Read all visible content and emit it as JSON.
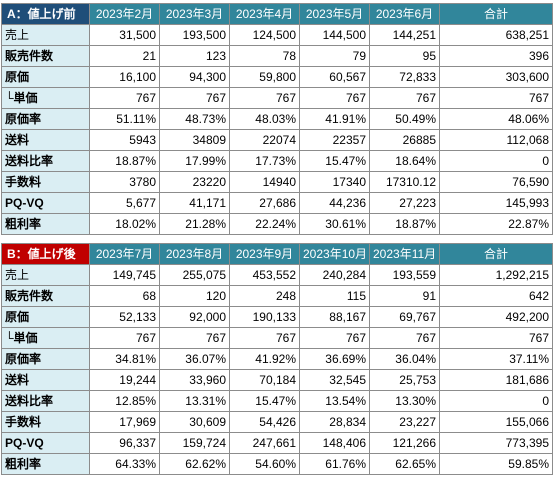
{
  "table_a": {
    "corner": "A：値上げ前",
    "headers": [
      "2023年2月",
      "2023年3月",
      "2023年4月",
      "2023年5月",
      "2023年6月",
      "合計"
    ],
    "rows": [
      {
        "label": "売上",
        "cells": [
          "31,500",
          "193,500",
          "124,500",
          "144,500",
          "144,251",
          "638,251"
        ]
      },
      {
        "label": "販売件数",
        "cells": [
          "21",
          "123",
          "78",
          "79",
          "95",
          "396"
        ]
      },
      {
        "label": "原価",
        "cells": [
          "16,100",
          "94,300",
          "59,800",
          "60,567",
          "72,833",
          "303,600"
        ]
      },
      {
        "label": "└単価",
        "cells": [
          "767",
          "767",
          "767",
          "767",
          "767",
          "767"
        ]
      },
      {
        "label": "原価率",
        "cells": [
          "51.11%",
          "48.73%",
          "48.03%",
          "41.91%",
          "50.49%",
          "48.06%"
        ]
      },
      {
        "label": "送料",
        "cells": [
          "5943",
          "34809",
          "22074",
          "22357",
          "26885",
          "112,068"
        ]
      },
      {
        "label": "送料比率",
        "cells": [
          "18.87%",
          "17.99%",
          "17.73%",
          "15.47%",
          "18.64%",
          "0"
        ]
      },
      {
        "label": "手数料",
        "cells": [
          "3780",
          "23220",
          "14940",
          "17340",
          "17310.12",
          "76,590"
        ]
      },
      {
        "label": "PQ-VQ",
        "cells": [
          "5,677",
          "41,171",
          "27,686",
          "44,236",
          "27,223",
          "145,993"
        ]
      },
      {
        "label": "粗利率",
        "cells": [
          "18.02%",
          "21.28%",
          "22.24%",
          "30.61%",
          "18.87%",
          "22.87%"
        ]
      }
    ]
  },
  "table_b": {
    "corner": "B：値上げ後",
    "headers": [
      "2023年7月",
      "2023年8月",
      "2023年9月",
      "2023年10月",
      "2023年11月",
      "合計"
    ],
    "rows": [
      {
        "label": "売上",
        "cells": [
          "149,745",
          "255,075",
          "453,552",
          "240,284",
          "193,559",
          "1,292,215"
        ]
      },
      {
        "label": "販売件数",
        "cells": [
          "68",
          "120",
          "248",
          "115",
          "91",
          "642"
        ]
      },
      {
        "label": "原価",
        "cells": [
          "52,133",
          "92,000",
          "190,133",
          "88,167",
          "69,767",
          "492,200"
        ]
      },
      {
        "label": "└単価",
        "cells": [
          "767",
          "767",
          "767",
          "767",
          "767",
          "767"
        ]
      },
      {
        "label": "原価率",
        "cells": [
          "34.81%",
          "36.07%",
          "41.92%",
          "36.69%",
          "36.04%",
          "37.11%"
        ]
      },
      {
        "label": "送料",
        "cells": [
          "19,244",
          "33,960",
          "70,184",
          "32,545",
          "25,753",
          "181,686"
        ]
      },
      {
        "label": "送料比率",
        "cells": [
          "12.85%",
          "13.31%",
          "15.47%",
          "13.54%",
          "13.30%",
          "0"
        ]
      },
      {
        "label": "手数料",
        "cells": [
          "17,969",
          "30,609",
          "54,426",
          "28,834",
          "23,227",
          "155,066"
        ]
      },
      {
        "label": "PQ-VQ",
        "cells": [
          "96,337",
          "159,724",
          "247,661",
          "148,406",
          "121,266",
          "773,395"
        ]
      },
      {
        "label": "粗利率",
        "cells": [
          "64.33%",
          "62.62%",
          "54.60%",
          "61.76%",
          "62.65%",
          "59.85%"
        ]
      }
    ]
  }
}
